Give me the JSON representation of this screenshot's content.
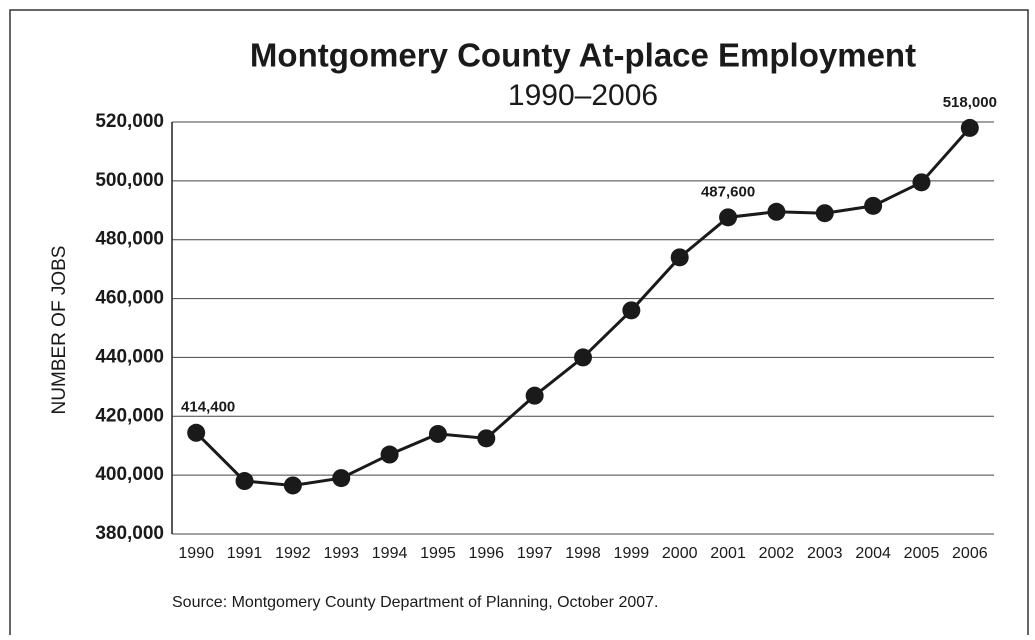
{
  "chart_data": {
    "type": "line",
    "title": "Montgomery County At-place Employment",
    "subtitle": "1990–2006",
    "y_label": "NUMBER OF JOBS",
    "source": "Source: Montgomery County Department of Planning, October 2007.",
    "categories": [
      "1990",
      "1991",
      "1992",
      "1993",
      "1994",
      "1995",
      "1996",
      "1997",
      "1998",
      "1999",
      "2000",
      "2001",
      "2002",
      "2003",
      "2004",
      "2005",
      "2006"
    ],
    "series": [
      {
        "name": "At-place Employment",
        "color": "#1a1a1a",
        "values": [
          414400,
          398000,
          396500,
          399000,
          407000,
          414000,
          412500,
          427000,
          440000,
          456000,
          474000,
          487600,
          489500,
          489000,
          491500,
          499500,
          518000
        ],
        "value_labels": [
          "414,400",
          null,
          null,
          null,
          null,
          null,
          null,
          null,
          null,
          null,
          null,
          "487,600",
          null,
          null,
          null,
          null,
          "518,000"
        ]
      }
    ],
    "ylim": [
      380000,
      520000
    ],
    "yticks": [
      {
        "value": 380000,
        "label": "380,000"
      },
      {
        "value": 400000,
        "label": "400,000"
      },
      {
        "value": 420000,
        "label": "420,000"
      },
      {
        "value": 440000,
        "label": "440,000"
      },
      {
        "value": 460000,
        "label": "460,000"
      },
      {
        "value": 480000,
        "label": "480,000"
      },
      {
        "value": 500000,
        "label": "500,000"
      },
      {
        "value": 520000,
        "label": "520,000"
      }
    ],
    "grid": true
  }
}
